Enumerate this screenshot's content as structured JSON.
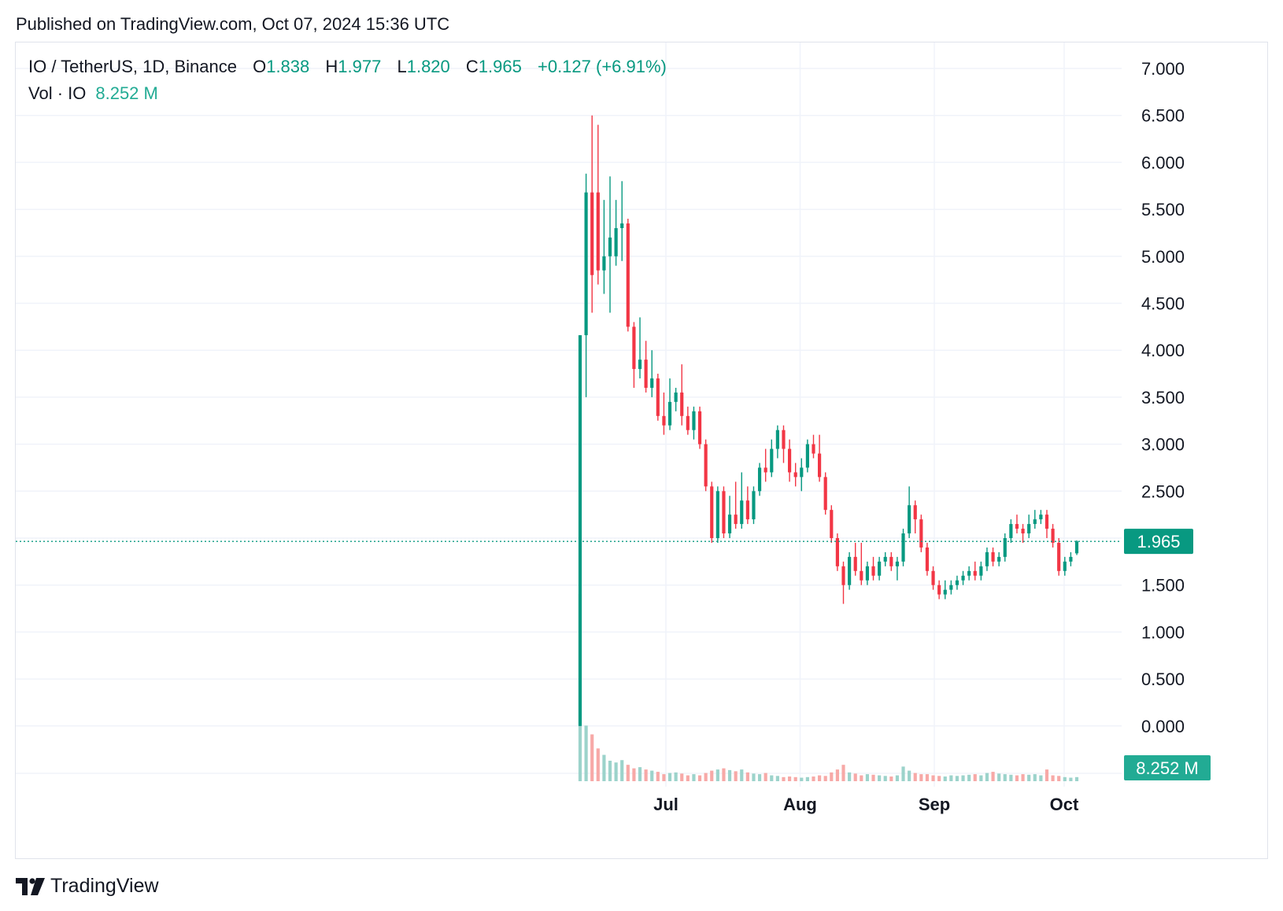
{
  "header": {
    "published": "Published on TradingView.com, Oct 07, 2024 15:36 UTC"
  },
  "legend": {
    "symbol": "IO / TetherUS, 1D, Binance",
    "o_label": "O",
    "o": "1.838",
    "h_label": "H",
    "h": "1.977",
    "l_label": "L",
    "l": "1.820",
    "c_label": "C",
    "c": "1.965",
    "change": "+0.127 (+6.91%)",
    "vol_label": "Vol · IO",
    "vol": "8.252 M"
  },
  "footer": {
    "brand": "TradingView"
  },
  "colors": {
    "up": "#089981",
    "down": "#f23645",
    "up_vol": "#9cd3cb",
    "down_vol": "#f7a9a7",
    "grid": "#f0f3fa",
    "axis_text": "#131722"
  },
  "chart_data": {
    "type": "candlestick",
    "y_ticks": [
      "7.000",
      "6.500",
      "6.000",
      "5.500",
      "5.000",
      "4.500",
      "4.000",
      "3.500",
      "3.000",
      "2.500",
      "2.000",
      "1.500",
      "1.000",
      "0.500",
      "0.000"
    ],
    "x_ticks": [
      "Jul",
      "Aug",
      "Sep",
      "Oct"
    ],
    "last_price": "1.965",
    "last_volume": "8.252 M",
    "ylim": [
      0,
      7
    ],
    "grid": true,
    "first_date": "2024-06-11",
    "candles": [
      [
        0.0,
        4.16,
        0.0,
        4.16
      ],
      [
        4.16,
        5.68,
        3.5,
        5.88
      ],
      [
        5.68,
        4.8,
        4.4,
        6.5
      ],
      [
        5.68,
        4.85,
        4.7,
        6.4
      ],
      [
        4.85,
        5.0,
        4.6,
        5.6
      ],
      [
        5.0,
        5.2,
        4.4,
        5.85
      ],
      [
        5.0,
        5.3,
        4.9,
        5.6
      ],
      [
        5.3,
        5.35,
        4.95,
        5.8
      ],
      [
        5.35,
        4.25,
        4.2,
        5.4
      ],
      [
        4.25,
        3.8,
        3.6,
        4.3
      ],
      [
        3.8,
        3.9,
        3.7,
        4.35
      ],
      [
        3.9,
        3.6,
        3.55,
        4.1
      ],
      [
        3.6,
        3.7,
        3.5,
        4.0
      ],
      [
        3.7,
        3.3,
        3.25,
        3.75
      ],
      [
        3.3,
        3.2,
        3.1,
        3.55
      ],
      [
        3.2,
        3.45,
        3.15,
        3.7
      ],
      [
        3.45,
        3.55,
        3.35,
        3.6
      ],
      [
        3.55,
        3.3,
        3.2,
        3.85
      ],
      [
        3.3,
        3.15,
        3.1,
        3.4
      ],
      [
        3.15,
        3.35,
        3.05,
        3.4
      ],
      [
        3.35,
        3.0,
        2.95,
        3.4
      ],
      [
        3.0,
        2.55,
        2.5,
        3.05
      ],
      [
        2.55,
        2.0,
        1.95,
        2.6
      ],
      [
        2.0,
        2.5,
        1.95,
        2.55
      ],
      [
        2.5,
        2.05,
        2.0,
        2.55
      ],
      [
        2.05,
        2.25,
        2.0,
        2.45
      ],
      [
        2.25,
        2.15,
        2.1,
        2.6
      ],
      [
        2.15,
        2.4,
        2.1,
        2.7
      ],
      [
        2.4,
        2.2,
        2.15,
        2.55
      ],
      [
        2.2,
        2.5,
        2.15,
        2.55
      ],
      [
        2.5,
        2.75,
        2.45,
        2.8
      ],
      [
        2.75,
        2.7,
        2.6,
        2.95
      ],
      [
        2.7,
        2.95,
        2.65,
        3.05
      ],
      [
        2.95,
        3.15,
        2.85,
        3.2
      ],
      [
        3.15,
        2.95,
        2.8,
        3.2
      ],
      [
        2.95,
        2.7,
        2.6,
        3.05
      ],
      [
        2.7,
        2.65,
        2.55,
        2.8
      ],
      [
        2.65,
        2.75,
        2.5,
        2.85
      ],
      [
        2.75,
        3.0,
        2.7,
        3.05
      ],
      [
        3.0,
        2.9,
        2.85,
        3.1
      ],
      [
        2.9,
        2.65,
        2.6,
        3.1
      ],
      [
        2.65,
        2.3,
        2.25,
        2.7
      ],
      [
        2.3,
        2.0,
        1.95,
        2.35
      ],
      [
        2.0,
        1.7,
        1.65,
        2.05
      ],
      [
        1.7,
        1.5,
        1.3,
        1.75
      ],
      [
        1.5,
        1.8,
        1.45,
        1.85
      ],
      [
        1.8,
        1.65,
        1.6,
        1.95
      ],
      [
        1.65,
        1.55,
        1.5,
        1.95
      ],
      [
        1.55,
        1.7,
        1.5,
        1.75
      ],
      [
        1.7,
        1.6,
        1.55,
        1.8
      ],
      [
        1.6,
        1.75,
        1.55,
        1.8
      ],
      [
        1.75,
        1.8,
        1.7,
        1.85
      ],
      [
        1.8,
        1.7,
        1.65,
        1.85
      ],
      [
        1.7,
        1.75,
        1.55,
        1.8
      ],
      [
        1.75,
        2.05,
        1.7,
        2.1
      ],
      [
        2.05,
        2.35,
        2.0,
        2.55
      ],
      [
        2.35,
        2.2,
        2.05,
        2.4
      ],
      [
        2.2,
        1.9,
        1.85,
        2.25
      ],
      [
        1.9,
        1.65,
        1.6,
        1.95
      ],
      [
        1.65,
        1.5,
        1.45,
        1.7
      ],
      [
        1.5,
        1.4,
        1.35,
        1.55
      ],
      [
        1.4,
        1.45,
        1.35,
        1.55
      ],
      [
        1.45,
        1.5,
        1.4,
        1.55
      ],
      [
        1.5,
        1.55,
        1.45,
        1.6
      ],
      [
        1.55,
        1.6,
        1.5,
        1.65
      ],
      [
        1.6,
        1.65,
        1.55,
        1.7
      ],
      [
        1.65,
        1.6,
        1.55,
        1.75
      ],
      [
        1.6,
        1.7,
        1.55,
        1.75
      ],
      [
        1.7,
        1.85,
        1.65,
        1.9
      ],
      [
        1.85,
        1.75,
        1.7,
        1.9
      ],
      [
        1.75,
        1.8,
        1.7,
        1.85
      ],
      [
        1.8,
        2.0,
        1.75,
        2.05
      ],
      [
        2.0,
        2.15,
        1.95,
        2.2
      ],
      [
        2.15,
        2.1,
        2.05,
        2.25
      ],
      [
        2.1,
        2.05,
        1.95,
        2.15
      ],
      [
        2.05,
        2.15,
        2.0,
        2.25
      ],
      [
        2.15,
        2.2,
        2.1,
        2.3
      ],
      [
        2.2,
        2.25,
        2.15,
        2.3
      ],
      [
        2.25,
        2.1,
        2.0,
        2.3
      ],
      [
        2.1,
        1.95,
        1.9,
        2.15
      ],
      [
        1.95,
        1.65,
        1.6,
        2.0
      ],
      [
        1.65,
        1.75,
        1.6,
        1.8
      ],
      [
        1.75,
        1.8,
        1.7,
        1.85
      ],
      [
        1.838,
        1.965,
        1.82,
        1.977
      ]
    ],
    "volumes": [
      3.2,
      0.95,
      0.8,
      0.56,
      0.45,
      0.35,
      0.32,
      0.36,
      0.28,
      0.22,
      0.24,
      0.2,
      0.18,
      0.16,
      0.12,
      0.14,
      0.15,
      0.13,
      0.1,
      0.12,
      0.1,
      0.14,
      0.18,
      0.2,
      0.22,
      0.19,
      0.17,
      0.2,
      0.15,
      0.13,
      0.12,
      0.14,
      0.1,
      0.09,
      0.07,
      0.08,
      0.07,
      0.06,
      0.07,
      0.08,
      0.1,
      0.09,
      0.15,
      0.2,
      0.28,
      0.15,
      0.13,
      0.1,
      0.12,
      0.11,
      0.1,
      0.09,
      0.08,
      0.1,
      0.25,
      0.18,
      0.14,
      0.12,
      0.12,
      0.1,
      0.09,
      0.08,
      0.1,
      0.09,
      0.1,
      0.11,
      0.12,
      0.1,
      0.14,
      0.16,
      0.13,
      0.12,
      0.11,
      0.1,
      0.12,
      0.11,
      0.12,
      0.1,
      0.2,
      0.1,
      0.09,
      0.07,
      0.06,
      0.07
    ]
  }
}
